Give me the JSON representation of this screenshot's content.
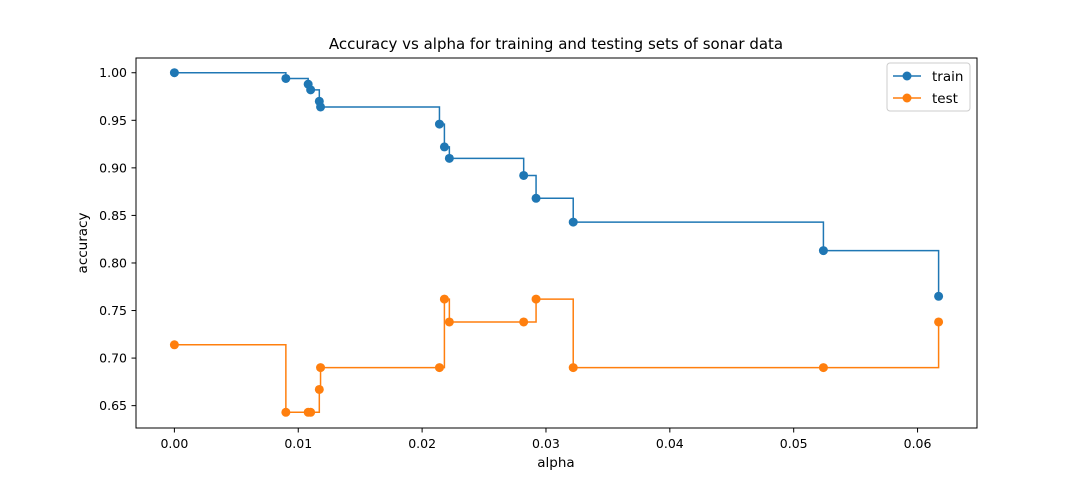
{
  "chart_data": {
    "type": "line",
    "title": "Accuracy vs alpha for training and testing sets of sonar data",
    "xlabel": "alpha",
    "ylabel": "accuracy",
    "xlim": [
      -0.0031,
      0.0648
    ],
    "ylim": [
      0.6265,
      1.0155
    ],
    "xticks": [
      0.0,
      0.01,
      0.02,
      0.03,
      0.04,
      0.05,
      0.06
    ],
    "xtick_labels": [
      "0.00",
      "0.01",
      "0.02",
      "0.03",
      "0.04",
      "0.05",
      "0.06"
    ],
    "yticks": [
      0.65,
      0.7,
      0.75,
      0.8,
      0.85,
      0.9,
      0.95,
      1.0
    ],
    "ytick_labels": [
      "0.65",
      "0.70",
      "0.75",
      "0.80",
      "0.85",
      "0.90",
      "0.95",
      "1.00"
    ],
    "drawstyle": "steps-post",
    "marker": "circle",
    "grid": false,
    "legend_position": "top-right",
    "x": [
      0.0,
      0.009,
      0.0108,
      0.011,
      0.0117,
      0.0118,
      0.0214,
      0.0218,
      0.0222,
      0.0282,
      0.0292,
      0.0322,
      0.0524,
      0.0617
    ],
    "series": [
      {
        "name": "train",
        "color": "#1f77b4",
        "values": [
          1.0,
          0.994,
          0.988,
          0.982,
          0.97,
          0.964,
          0.946,
          0.922,
          0.91,
          0.892,
          0.868,
          0.843,
          0.813,
          0.765
        ]
      },
      {
        "name": "test",
        "color": "#ff7f0e",
        "values": [
          0.714,
          0.643,
          0.643,
          0.643,
          0.667,
          0.69,
          0.69,
          0.762,
          0.738,
          0.738,
          0.762,
          0.69,
          0.69,
          0.738
        ]
      }
    ]
  }
}
